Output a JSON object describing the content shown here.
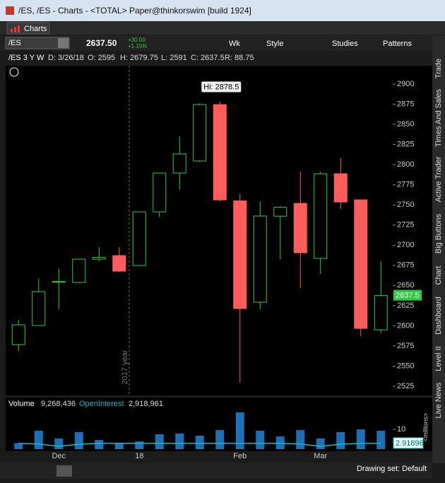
{
  "window": {
    "title": "/ES, /ES - Charts - <TOTAL> Paper@thinkorswim [build 1924]"
  },
  "tab": "Charts",
  "toolbar": {
    "symbol": "/ES",
    "last": "2637.50",
    "change": "+30.00",
    "change_pct": "+1.15%",
    "period": "Wk",
    "style": "Style",
    "studies": "Studies",
    "patterns": "Patterns"
  },
  "info": {
    "label": "/ES 3 Y W",
    "date": "D: 3/26/18",
    "open": "O: 2595",
    "high": "H: 2679.75",
    "low": "L: 2591",
    "close": "C: 2637.5",
    "range": "R: 88.75"
  },
  "sidebar": [
    "Trade",
    "Times And Sales",
    "Active Trader",
    "Big Buttons",
    "Chart",
    "Dashboard",
    "Level II",
    "Live News"
  ],
  "footer": {
    "drawing_set": "Drawing set: Default"
  },
  "chart_data": [
    {
      "type": "candlestick",
      "categories": [
        null,
        null,
        "Dec",
        null,
        null,
        null,
        "18",
        null,
        null,
        null,
        null,
        "Feb",
        null,
        null,
        null,
        "Mar",
        null,
        null,
        null
      ],
      "open": [
        2576.7,
        2600.4,
        2654,
        2653.8,
        2682.7,
        2687.1,
        2674.8,
        2741.4,
        2789.6,
        2804.5,
        2874.5,
        2755,
        2629.3,
        2736,
        2751.9,
        2683.6,
        2788.7,
        2756.3,
        2595
      ],
      "high": [
        2607.4,
        2658.2,
        2671,
        2683,
        2697.6,
        2697.6,
        2742,
        2790,
        2835,
        2876,
        2878.5,
        2763.3,
        2754.6,
        2748.4,
        2791.4,
        2791.4,
        2808,
        2756.5,
        2679.75
      ],
      "low": [
        2568.8,
        2600,
        2620.5,
        2653,
        2680,
        2667,
        2674,
        2735,
        2769,
        2803,
        2754.6,
        2529.4,
        2620.5,
        2682.7,
        2646.8,
        2664.3,
        2745,
        2587,
        2591
      ],
      "close": [
        2601.2,
        2642.4,
        2655,
        2682.7,
        2685,
        2667.8,
        2741.4,
        2789.6,
        2813.3,
        2874.6,
        2756.3,
        2621.4,
        2736.2,
        2747,
        2690.6,
        2788.7,
        2753.7,
        2596.8,
        2637.5
      ],
      "up_color": "#2ecc40",
      "down_color": "#ff5c5c",
      "ylim": [
        2513.6,
        2922.8
      ],
      "yticks": [
        2525,
        2550,
        2575,
        2600,
        2625,
        2650,
        2675,
        2700,
        2725,
        2750,
        2775,
        2800,
        2825,
        2850,
        2875,
        2900
      ],
      "hi_label": "Hi: 2878.5",
      "last_label": "2637.5",
      "year_label": "2017 year"
    },
    {
      "type": "volume",
      "volume_label": "Volume",
      "volume_value": "9,268,436",
      "oi_label": "OpenInterest",
      "oi_value": "2,918,961",
      "series": [
        {
          "name": "Volume",
          "color": "#1f6fb5",
          "values": [
            3,
            9.3,
            5.4,
            8.6,
            4.6,
            3.2,
            3.9,
            7.5,
            7.9,
            6.8,
            9.6,
            18.6,
            9.3,
            6.4,
            9.6,
            5.4,
            8.6,
            10,
            9.3
          ]
        },
        {
          "name": "OpenInterest",
          "color": "#17b8c8",
          "values": [
            2.9,
            2.6,
            1.4,
            2.5,
            2.9,
            2.9,
            2.9,
            2.9,
            2.9,
            2.9,
            2.9,
            2.9,
            2.9,
            2.9,
            2.6,
            1.4,
            2.5,
            2.9,
            2.9
          ]
        }
      ],
      "ylim": [
        0,
        19.3
      ],
      "yticks": [
        10
      ],
      "y_label": "<millions>",
      "oi_last_label": "2.91896"
    }
  ]
}
